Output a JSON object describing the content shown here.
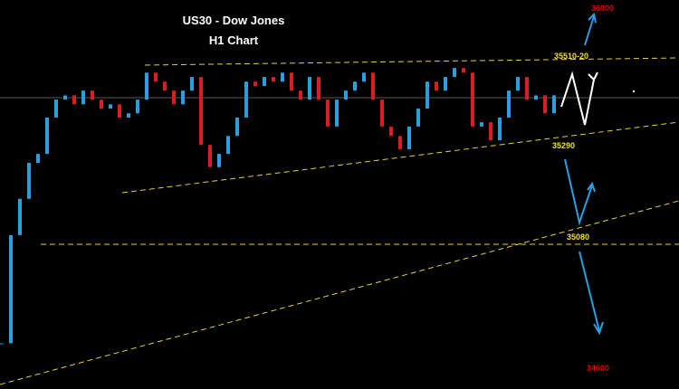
{
  "chart_data": {
    "type": "candlestick",
    "title": "US30 - Dow Jones",
    "subtitle": "H1 Chart",
    "close": [
      34847,
      35100,
      35185,
      35269,
      35290,
      35375,
      35417,
      35427,
      35406,
      35438,
      35417,
      35396,
      35406,
      35375,
      35385,
      35417,
      35480,
      35459,
      35438,
      35406,
      35438,
      35470,
      35311,
      35259,
      35290,
      35332,
      35375,
      35459,
      35449,
      35470,
      35459,
      35480,
      35438,
      35417,
      35470,
      35417,
      35354,
      35417,
      35438,
      35459,
      35480,
      35417,
      35354,
      35332,
      35301,
      35354,
      35396,
      35459,
      35438,
      35470,
      35491,
      35480,
      35354,
      35364,
      35322,
      35375,
      35438,
      35470,
      35417,
      35427,
      35385,
      35427
    ],
    "up_color": "#2a9fe0",
    "down_color": "#d81e1e",
    "ylim": [
      34740,
      35650
    ],
    "annotations": [
      {
        "text": "36000",
        "color": "#e00000"
      },
      {
        "text": "35510-20",
        "color": "#f0e020"
      },
      {
        "text": "35290",
        "color": "#f0e020"
      },
      {
        "text": "35080",
        "color": "#f0e020"
      },
      {
        "text": "34600",
        "color": "#e00000"
      }
    ]
  }
}
